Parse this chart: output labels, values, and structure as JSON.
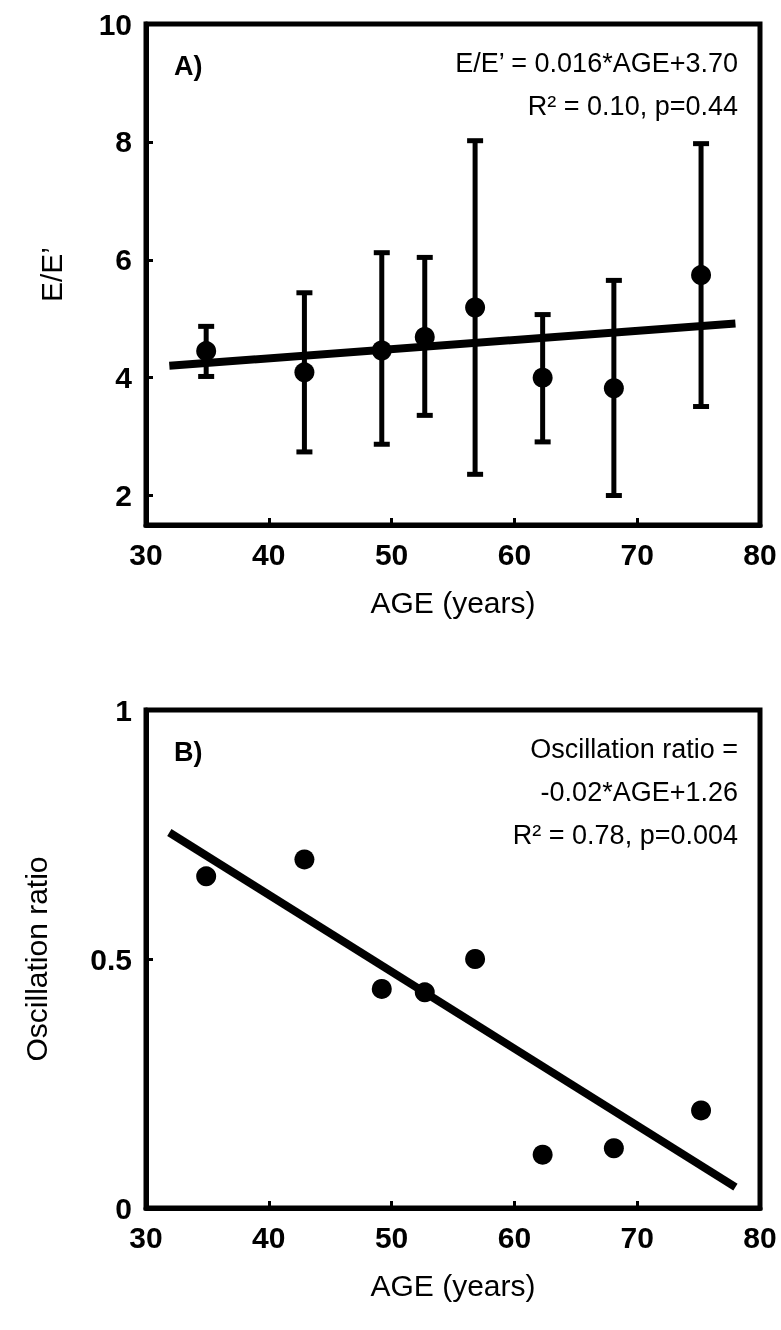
{
  "chart_data": [
    {
      "type": "scatter",
      "xlabel": "AGE (years)",
      "ylabel": "E/E’",
      "xlim": [
        30,
        80
      ],
      "xticks": [
        30,
        40,
        50,
        60,
        70,
        80
      ],
      "ylim": [
        1.5,
        10
      ],
      "yticks": [
        2,
        4,
        6,
        8,
        10
      ],
      "marker": "circle",
      "series": [
        {
          "color": "#000000",
          "x": [
            34.9,
            42.9,
            49.2,
            52.7,
            56.8,
            62.3,
            68.1,
            75.2
          ],
          "values": [
            4.45,
            4.09,
            4.46,
            4.69,
            5.19,
            4.0,
            3.82,
            5.74
          ],
          "errors": [
            [
              4.02,
              4.87
            ],
            [
              2.74,
              5.44
            ],
            [
              2.87,
              6.12
            ],
            [
              3.36,
              6.04
            ],
            [
              2.36,
              8.02
            ],
            [
              2.91,
              5.07
            ],
            [
              2.0,
              5.65
            ],
            [
              3.51,
              7.97
            ]
          ]
        },
        {
          "type": "line",
          "color": "#000000",
          "marker": "none",
          "x": [
            31.9,
            78.0
          ],
          "values": [
            4.2,
            4.92
          ]
        }
      ],
      "annotations": [
        "A)",
        "E/E’ = 0.016*AGE+3.70",
        "R² = 0.10, p=0.44"
      ]
    },
    {
      "type": "scatter",
      "xlabel": "AGE (years)",
      "ylabel": "Oscillation ratio",
      "xlim": [
        30,
        80
      ],
      "xticks": [
        30,
        40,
        50,
        60,
        70,
        80
      ],
      "ylim": [
        0,
        1
      ],
      "yticks": [
        0,
        0.5,
        1
      ],
      "marker": "circle",
      "series": [
        {
          "color": "#000000",
          "x": [
            34.9,
            42.9,
            49.2,
            52.7,
            56.8,
            62.3,
            68.1,
            75.2
          ],
          "values": [
            0.666,
            0.7,
            0.44,
            0.433,
            0.5,
            0.107,
            0.12,
            0.196
          ]
        },
        {
          "type": "line",
          "color": "#000000",
          "marker": "none",
          "x": [
            31.9,
            78.0
          ],
          "values": [
            0.754,
            0.042
          ]
        }
      ],
      "annotations": [
        "B)",
        "Oscillation ratio =",
        "-0.02*AGE+1.26",
        "R² = 0.78, p=0.004"
      ]
    }
  ]
}
